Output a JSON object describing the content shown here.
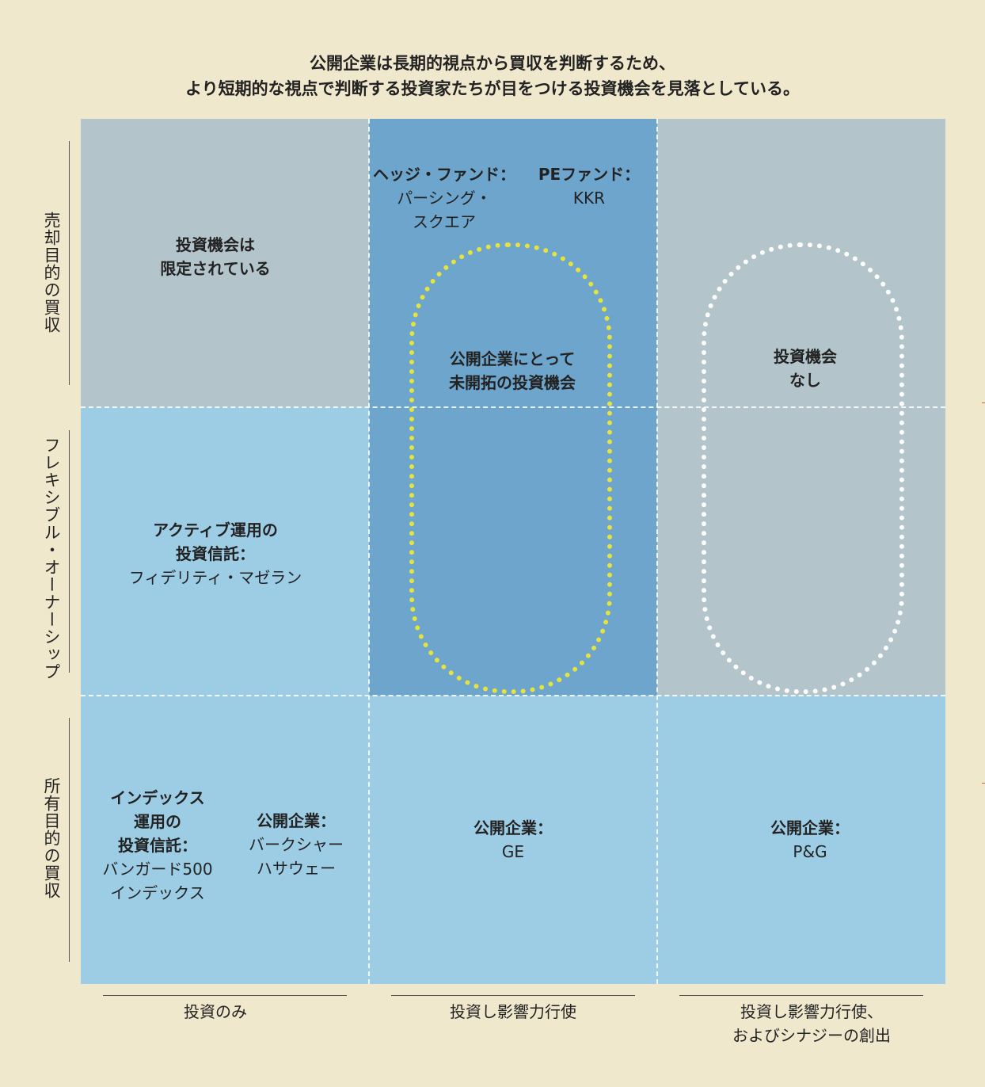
{
  "title": {
    "line1": "公開企業は長期的視点から買収を判断するため、",
    "line2": "より短期的な視点で判断する投資家たちが目をつける投資機会を見落としている。"
  },
  "rows": [
    {
      "label": "売却目的の買収"
    },
    {
      "label": "フレキシブル・オーナーシップ"
    },
    {
      "label": "所有目的の買収"
    }
  ],
  "columns": [
    {
      "label_line1": "投資のみ",
      "label_line2": ""
    },
    {
      "label_line1": "投資し影響力行使",
      "label_line2": ""
    },
    {
      "label_line1": "投資し影響力行使、",
      "label_line2": "およびシナジーの創出"
    }
  ],
  "cells": {
    "r1c1": {
      "line1": "投資機会は",
      "line2": "限定されている"
    },
    "r1c2_a": {
      "title": "ヘッジ・ファンド：",
      "line1": "パーシング・",
      "line2": "スクエア"
    },
    "r1c2_b": {
      "title": "PEファンド：",
      "line1": "KKR"
    },
    "r1c2_oval": {
      "line1": "公開企業にとって",
      "line2": "未開拓の投資機会"
    },
    "r1c3_oval": {
      "line1": "投資機会",
      "line2": "なし"
    },
    "r2c1": {
      "line1": "アクティブ運用の",
      "line2": "投資信託：",
      "line3": "フィデリティ・マゼラン"
    },
    "r3c1_a": {
      "line1": "インデックス",
      "line2": "運用の",
      "line3": "投資信託：",
      "line4": "バンガード500",
      "line5": "インデックス"
    },
    "r3c1_b": {
      "title": "公開企業：",
      "line1": "バークシャー",
      "line2": "ハサウェー"
    },
    "r3c2": {
      "title": "公開企業：",
      "line1": "GE"
    },
    "r3c3": {
      "title": "公開企業：",
      "line1": "P&G"
    }
  },
  "colors": {
    "background": "#efe8cc",
    "gray_cell": "#b3c5cb",
    "light_blue_cell": "#9dcde4",
    "highlight_blue_cell": "#6ea5cc",
    "yellow_oval": "#e6e43c",
    "white_oval": "#ffffff"
  }
}
